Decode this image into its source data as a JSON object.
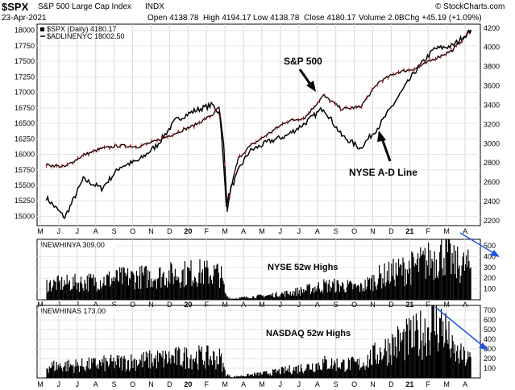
{
  "header": {
    "symbol": "$SPX",
    "name": "S&P 500 Large Cap Index",
    "exchange": "INDX",
    "date": "23-Apr-2021",
    "open": "Open 4138.78",
    "high": "High 4194.17",
    "low": "Low 4138.78",
    "close": "Close 4180.17",
    "volume": "Volume 2.0B",
    "chg": "Chg +45.19 (+1.09%)",
    "watermark": "© StockCharts.com"
  },
  "chart_data": [
    {
      "type": "line",
      "panel": "main",
      "legend": [
        "$SPX (Daily) 4180.17",
        "$ADLINENYC 18002.50"
      ],
      "x_ticks": [
        "M",
        "J",
        "J",
        "A",
        "S",
        "O",
        "N",
        "D",
        "20",
        "F",
        "M",
        "A",
        "M",
        "J",
        "J",
        "A",
        "S",
        "O",
        "N",
        "D",
        "21",
        "F",
        "M",
        "A"
      ],
      "left_axis": {
        "ticks": [
          "18000",
          "17750",
          "17500",
          "17250",
          "17000",
          "16750",
          "16500",
          "16250",
          "16000",
          "15750",
          "15500",
          "15250",
          "15000"
        ],
        "ylim": [
          14850,
          18100
        ]
      },
      "right_axis": {
        "ticks": [
          "4200",
          "4000",
          "3800",
          "3600",
          "3400",
          "3200",
          "3000",
          "2800",
          "2600",
          "2400",
          "2200"
        ],
        "ylim": [
          2150,
          4240
        ]
      },
      "series": [
        {
          "name": "$SPX (Daily) 4180.17",
          "axis": "right",
          "color": "#000000",
          "points": [
            [
              0,
              2780
            ],
            [
              1,
              2760
            ],
            [
              2,
              2880
            ],
            [
              3,
              2950
            ],
            [
              4,
              2980
            ],
            [
              5,
              2970
            ],
            [
              6,
              3030
            ],
            [
              7,
              3110
            ],
            [
              8,
              3190
            ],
            [
              9,
              3300
            ],
            [
              9.35,
              3380
            ],
            [
              9.6,
              3000
            ],
            [
              9.8,
              2300
            ],
            [
              10.0,
              2550
            ],
            [
              10.4,
              2850
            ],
            [
              11,
              2970
            ],
            [
              12,
              3100
            ],
            [
              13,
              3230
            ],
            [
              14,
              3270
            ],
            [
              15,
              3500
            ],
            [
              16,
              3360
            ],
            [
              17,
              3380
            ],
            [
              18,
              3640
            ],
            [
              19,
              3740
            ],
            [
              20,
              3780
            ],
            [
              21,
              3880
            ],
            [
              22,
              3970
            ],
            [
              23,
              4180
            ]
          ]
        },
        {
          "name": "$ADLINENYC 18002.50",
          "axis": "left",
          "color": "#000000",
          "points": [
            [
              0,
              15300
            ],
            [
              1,
              14980
            ],
            [
              2,
              15600
            ],
            [
              3,
              15450
            ],
            [
              4,
              15800
            ],
            [
              5,
              15900
            ],
            [
              6,
              16150
            ],
            [
              7,
              16550
            ],
            [
              8,
              16700
            ],
            [
              9,
              16800
            ],
            [
              9.4,
              16650
            ],
            [
              9.75,
              15200
            ],
            [
              10.0,
              15450
            ],
            [
              10.5,
              15800
            ],
            [
              11,
              16050
            ],
            [
              12,
              16200
            ],
            [
              13,
              16300
            ],
            [
              14,
              16500
            ],
            [
              15,
              16750
            ],
            [
              16,
              16300
            ],
            [
              17,
              16100
            ],
            [
              18,
              16450
            ],
            [
              19,
              16900
            ],
            [
              20,
              17350
            ],
            [
              21,
              17700
            ],
            [
              22,
              17750
            ],
            [
              23,
              18000
            ]
          ]
        }
      ],
      "annotations": [
        "S&P 500",
        "NYSE A-D Line"
      ]
    },
    {
      "type": "bar",
      "panel": "nyse",
      "legend": [
        "!NEWHINYA 309.00"
      ],
      "y_ticks": [
        "500",
        "400",
        "300",
        "200",
        "100"
      ],
      "ylim": [
        0,
        560
      ],
      "series": [
        {
          "name": "!NEWHINYA 309.00",
          "color": "#000000",
          "points": [
            [
              0,
              140
            ],
            [
              2,
              160
            ],
            [
              4,
              200
            ],
            [
              6,
              220
            ],
            [
              8,
              250
            ],
            [
              9.4,
              240
            ],
            [
              9.7,
              40
            ],
            [
              10,
              10
            ],
            [
              11,
              25
            ],
            [
              12,
              40
            ],
            [
              13,
              60
            ],
            [
              14,
              90
            ],
            [
              15,
              130
            ],
            [
              16,
              130
            ],
            [
              17,
              110
            ],
            [
              18,
              210
            ],
            [
              19,
              260
            ],
            [
              20,
              310
            ],
            [
              21,
              380
            ],
            [
              21.6,
              450
            ],
            [
              22,
              330
            ],
            [
              23,
              300
            ]
          ]
        }
      ],
      "annotations": [
        "NYSE 52w Highs"
      ]
    },
    {
      "type": "bar",
      "panel": "nasdaq",
      "legend": [
        "!NEWHINAS 173.00"
      ],
      "y_ticks": [
        "700",
        "600",
        "500",
        "400",
        "300",
        "200",
        "100"
      ],
      "ylim": [
        0,
        750
      ],
      "series": [
        {
          "name": "!NEWHINAS 173.00",
          "color": "#000000",
          "points": [
            [
              0,
              120
            ],
            [
              2,
              130
            ],
            [
              4,
              160
            ],
            [
              6,
              190
            ],
            [
              8,
              220
            ],
            [
              9.4,
              200
            ],
            [
              9.7,
              40
            ],
            [
              10,
              10
            ],
            [
              11,
              30
            ],
            [
              12,
              50
            ],
            [
              13,
              80
            ],
            [
              14,
              110
            ],
            [
              15,
              150
            ],
            [
              16,
              140
            ],
            [
              17,
              140
            ],
            [
              18,
              260
            ],
            [
              19,
              360
            ],
            [
              20,
              420
            ],
            [
              21,
              560
            ],
            [
              21.5,
              520
            ],
            [
              22,
              260
            ],
            [
              23,
              180
            ]
          ]
        }
      ],
      "annotations": [
        "NASDAQ 52w Highs"
      ]
    }
  ]
}
